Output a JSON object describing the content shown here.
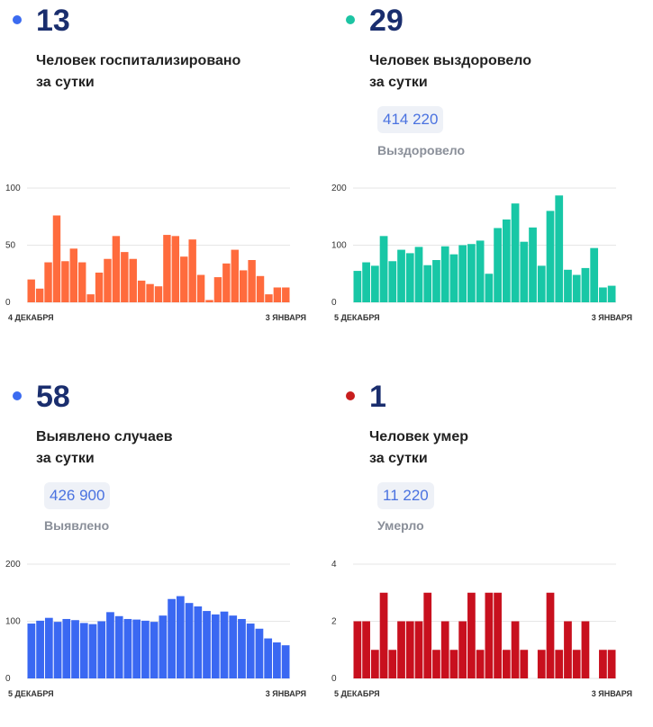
{
  "panels": [
    {
      "number": "13",
      "label_line1": "Человек госпитализировано",
      "label_line2": "за сутки",
      "total": "",
      "total_label": "",
      "dot_color": "#3b6bf0",
      "bar_color": "#ff6b3d",
      "chart_data": {
        "type": "bar",
        "title": "",
        "x_start": "4 ДЕКАБРЯ",
        "x_end": "3 ЯНВАРЯ",
        "ylim": [
          0,
          100
        ],
        "yticks": [
          0,
          50,
          100
        ],
        "grid": true,
        "values": [
          20,
          12,
          35,
          76,
          36,
          47,
          35,
          7,
          26,
          38,
          58,
          44,
          38,
          19,
          16,
          14,
          59,
          58,
          40,
          55,
          24,
          2,
          22,
          34,
          46,
          28,
          37,
          23,
          7,
          13,
          13
        ]
      }
    },
    {
      "number": "29",
      "label_line1": "Человек выздоровело",
      "label_line2": "за сутки",
      "total": "414 220",
      "total_label": "Выздоровело",
      "dot_color": "#1cc4a3",
      "bar_color": "#18c7a6",
      "chart_data": {
        "type": "bar",
        "title": "",
        "x_start": "5 ДЕКАБРЯ",
        "x_end": "3 ЯНВАРЯ",
        "ylim": [
          0,
          200
        ],
        "yticks": [
          0,
          100,
          200
        ],
        "grid": true,
        "values": [
          55,
          70,
          64,
          116,
          72,
          92,
          86,
          97,
          65,
          74,
          98,
          84,
          100,
          102,
          108,
          50,
          130,
          145,
          173,
          106,
          131,
          64,
          160,
          187,
          57,
          48,
          60,
          95,
          26,
          29
        ]
      }
    },
    {
      "number": "58",
      "label_line1": "Выявлено случаев",
      "label_line2": "за сутки",
      "total": "426 900",
      "total_label": "Выявлено",
      "dot_color": "#3b6bf0",
      "bar_color": "#3a68f2",
      "chart_data": {
        "type": "bar",
        "title": "",
        "x_start": "5 ДЕКАБРЯ",
        "x_end": "3 ЯНВАРЯ",
        "ylim": [
          0,
          200
        ],
        "yticks": [
          0,
          100,
          200
        ],
        "grid": true,
        "values": [
          96,
          101,
          106,
          99,
          104,
          102,
          97,
          95,
          100,
          116,
          109,
          104,
          103,
          101,
          99,
          110,
          139,
          144,
          132,
          126,
          118,
          112,
          117,
          110,
          104,
          96,
          87,
          70,
          63,
          58
        ]
      }
    },
    {
      "number": "1",
      "label_line1": "Человек умер",
      "label_line2": "за сутки",
      "total": "11 220",
      "total_label": "Умерло",
      "dot_color": "#c81e1e",
      "bar_color": "#c8101e",
      "chart_data": {
        "type": "bar",
        "title": "",
        "x_start": "5 ДЕКАБРЯ",
        "x_end": "3 ЯНВАРЯ",
        "ylim": [
          0,
          4
        ],
        "yticks": [
          0,
          2,
          4
        ],
        "grid": true,
        "values": [
          2,
          2,
          1,
          3,
          1,
          2,
          2,
          2,
          3,
          1,
          2,
          1,
          2,
          3,
          1,
          3,
          3,
          1,
          2,
          1,
          0,
          1,
          3,
          1,
          2,
          1,
          2,
          0,
          1,
          1
        ]
      }
    }
  ]
}
